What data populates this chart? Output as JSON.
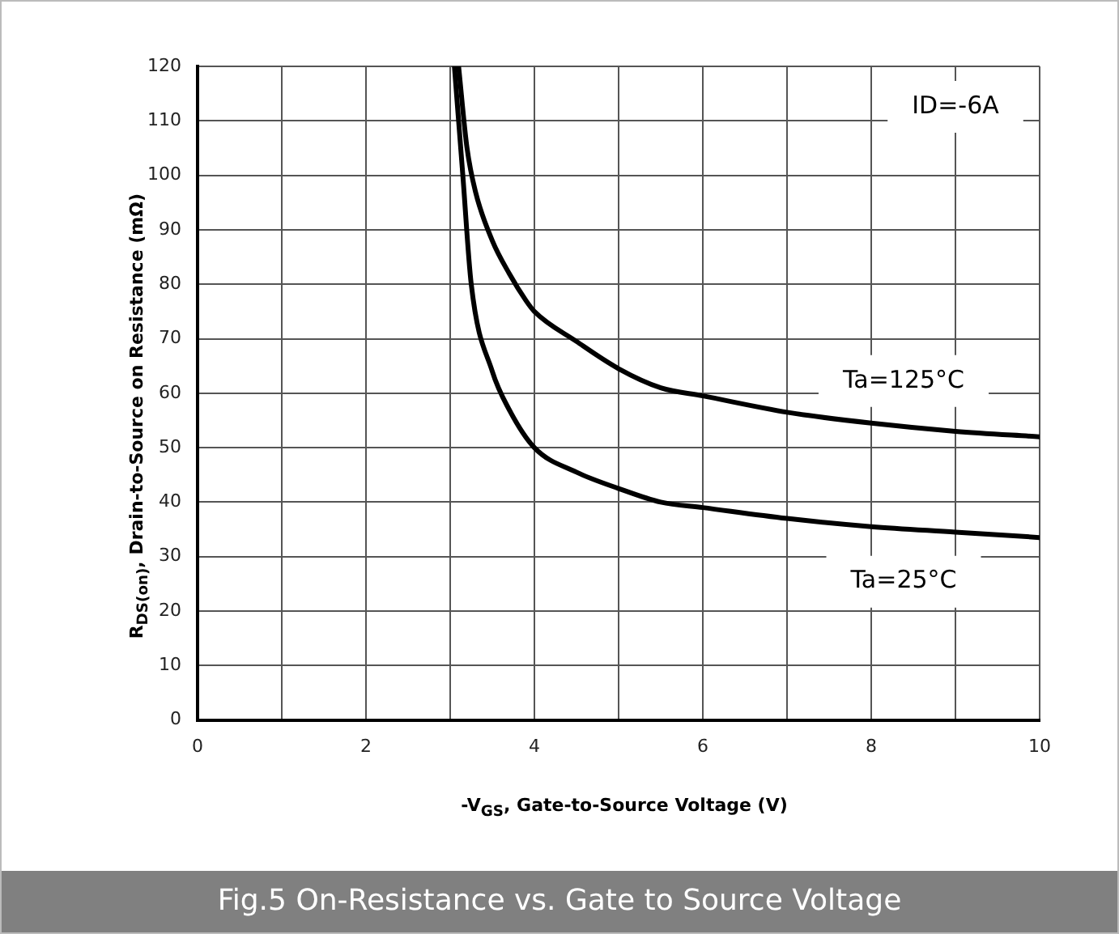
{
  "chart_data": {
    "type": "line",
    "title": "Fig.5 On-Resistance vs. Gate to Source Voltage",
    "xlabel": "-V$_{GS}$, Gate-to-Source Voltage (V)",
    "ylabel": "R$_{DS(on)}$, Drain-to-Source on Resistance (mΩ)",
    "annotations": [
      "ID=-6A"
    ],
    "series": [
      {
        "name": "Ta=125°C",
        "color": "#000000",
        "x": [
          3.1,
          3.2,
          3.3,
          3.5,
          3.7,
          3.9,
          4,
          4.5,
          5,
          5.5,
          6,
          7,
          8,
          9,
          10
        ],
        "values": [
          120,
          105,
          97,
          88,
          82,
          77,
          75,
          69.5,
          64.5,
          61,
          59.5,
          56.5,
          54.5,
          53,
          52
        ]
      },
      {
        "name": "Ta=25°C",
        "color": "#000000",
        "x": [
          3.05,
          3.15,
          3.25,
          3.5,
          3.7,
          4,
          4.5,
          5,
          5.5,
          6,
          7,
          8,
          9,
          10
        ],
        "values": [
          120,
          100,
          80,
          64,
          57,
          50,
          45.5,
          42.5,
          40,
          39,
          37,
          35.5,
          34.5,
          33.5
        ]
      }
    ],
    "xlim": [
      0,
      10
    ],
    "xticks": [
      0,
      {
        "value": 1,
        "label": null
      },
      2,
      {
        "value": 3,
        "label": null
      },
      4,
      {
        "value": 5,
        "label": null
      },
      6,
      {
        "value": 7,
        "label": null
      },
      8,
      {
        "value": 9,
        "label": null
      },
      10
    ],
    "ylim": [
      0,
      120
    ],
    "yticks": [
      0,
      10,
      20,
      30,
      40,
      50,
      60,
      70,
      80,
      90,
      100,
      110,
      120
    ],
    "grid": true,
    "legend": false,
    "marker": "none",
    "line_style": "solid"
  }
}
